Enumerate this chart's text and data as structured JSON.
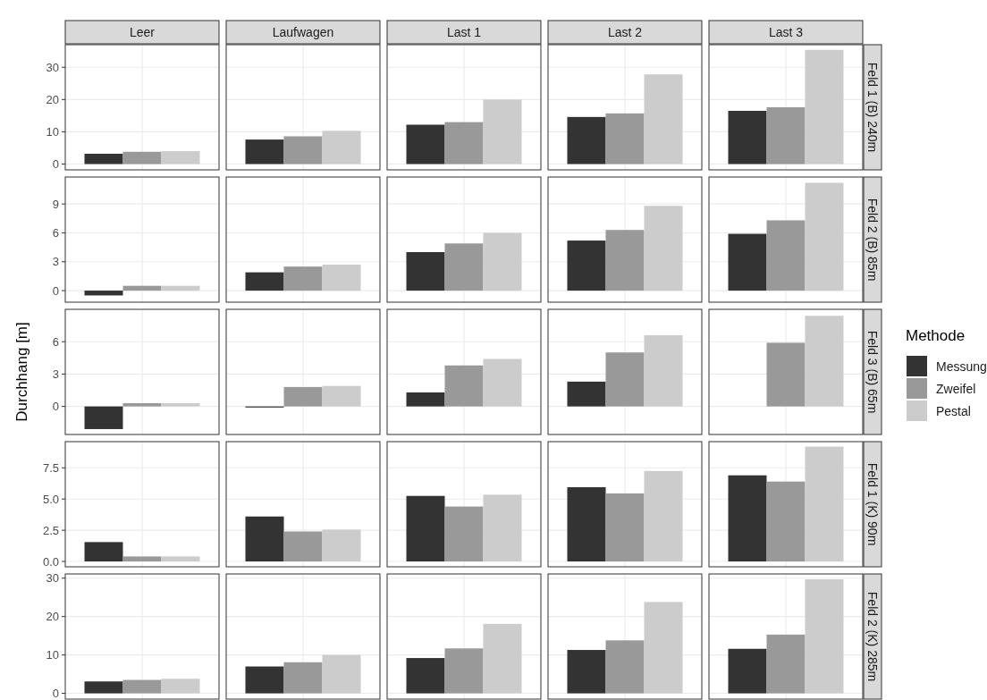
{
  "chart_data": [
    {
      "type": "bar",
      "annotations": [
        "Feld 1 (B) 240m"
      ],
      "categories": [
        "Leer",
        "Laufwagen",
        "Last 1",
        "Last 2",
        "Last 3"
      ],
      "series": [
        {
          "color": "#333333",
          "values": [
            3.2,
            7.6,
            12.2,
            14.6,
            16.5
          ]
        },
        {
          "color": "#999999",
          "values": [
            3.8,
            8.6,
            13,
            15.7,
            17.6
          ]
        },
        {
          "color": "#cccccc",
          "values": [
            4.0,
            10.3,
            20,
            27.8,
            35.4
          ]
        }
      ],
      "ylim": [
        -1.8,
        37
      ],
      "yticks": [
        0,
        10,
        20,
        30
      ],
      "grid": true
    },
    {
      "type": "bar",
      "annotations": [
        "Feld 2 (B) 85m"
      ],
      "categories": [
        null,
        null,
        null,
        null,
        null
      ],
      "series": [
        {
          "color": "#333333",
          "values": [
            -0.5,
            1.9,
            4.0,
            5.2,
            5.9
          ]
        },
        {
          "color": "#999999",
          "values": [
            0.5,
            2.5,
            4.9,
            6.3,
            7.3
          ]
        },
        {
          "color": "#cccccc",
          "values": [
            0.5,
            2.7,
            6.0,
            8.8,
            11.2
          ]
        }
      ],
      "ylim": [
        -1.2,
        11.8
      ],
      "yticks": [
        0,
        3,
        6,
        9
      ],
      "grid": true,
      "tick_labels": "y"
    },
    {
      "type": "bar",
      "ylabel": "Durchhang [m]",
      "annotations": [
        "Feld 3 (B) 65m"
      ],
      "legend": "right",
      "legend_title": "Methode",
      "categories": [
        null,
        null,
        null,
        null,
        null
      ],
      "series": [
        {
          "name": "Messung",
          "color": "#333333",
          "values": [
            -2.1,
            -0.1,
            1.3,
            2.3,
            null
          ]
        },
        {
          "name": "Zweifel",
          "color": "#999999",
          "values": [
            0.3,
            1.8,
            3.8,
            5.0,
            5.9
          ]
        },
        {
          "name": "Pestal",
          "color": "#cccccc",
          "values": [
            0.3,
            1.9,
            4.4,
            6.6,
            8.4
          ]
        }
      ],
      "ylim": [
        -2.6,
        9
      ],
      "yticks": [
        0,
        3,
        6
      ],
      "grid": true,
      "tick_labels": "y"
    },
    {
      "type": "bar",
      "annotations": [
        "Feld 1 (K) 90m"
      ],
      "categories": [
        null,
        null,
        null,
        null,
        null
      ],
      "series": [
        {
          "color": "#333333",
          "values": [
            1.55,
            3.6,
            5.25,
            5.95,
            6.9
          ]
        },
        {
          "color": "#999999",
          "values": [
            0.4,
            2.4,
            4.4,
            5.45,
            6.4
          ]
        },
        {
          "color": "#cccccc",
          "values": [
            0.4,
            2.55,
            5.35,
            7.25,
            9.2
          ]
        }
      ],
      "ylim": [
        -0.43,
        9.6
      ],
      "yticks": [
        {
          "value": 0,
          "label": "0.0"
        },
        2.5,
        {
          "value": 5,
          "label": "5.0"
        },
        7.5
      ],
      "grid": true,
      "tick_labels": "y"
    },
    {
      "type": "bar",
      "annotations": [
        "Feld 2 (K) 285m"
      ],
      "categories": [
        null,
        null,
        null,
        null,
        null
      ],
      "series": [
        {
          "color": "#333333",
          "values": [
            3.1,
            7.0,
            9.2,
            11.3,
            11.6
          ]
        },
        {
          "color": "#999999",
          "values": [
            3.5,
            8.1,
            11.7,
            13.8,
            15.3
          ]
        },
        {
          "color": "#cccccc",
          "values": [
            3.8,
            10.0,
            18.1,
            23.8,
            29.7
          ]
        }
      ],
      "ylim": [
        -1.5,
        31.1
      ],
      "yticks": [
        0,
        10,
        20,
        30
      ],
      "grid": true,
      "tick_labels": "y"
    }
  ]
}
